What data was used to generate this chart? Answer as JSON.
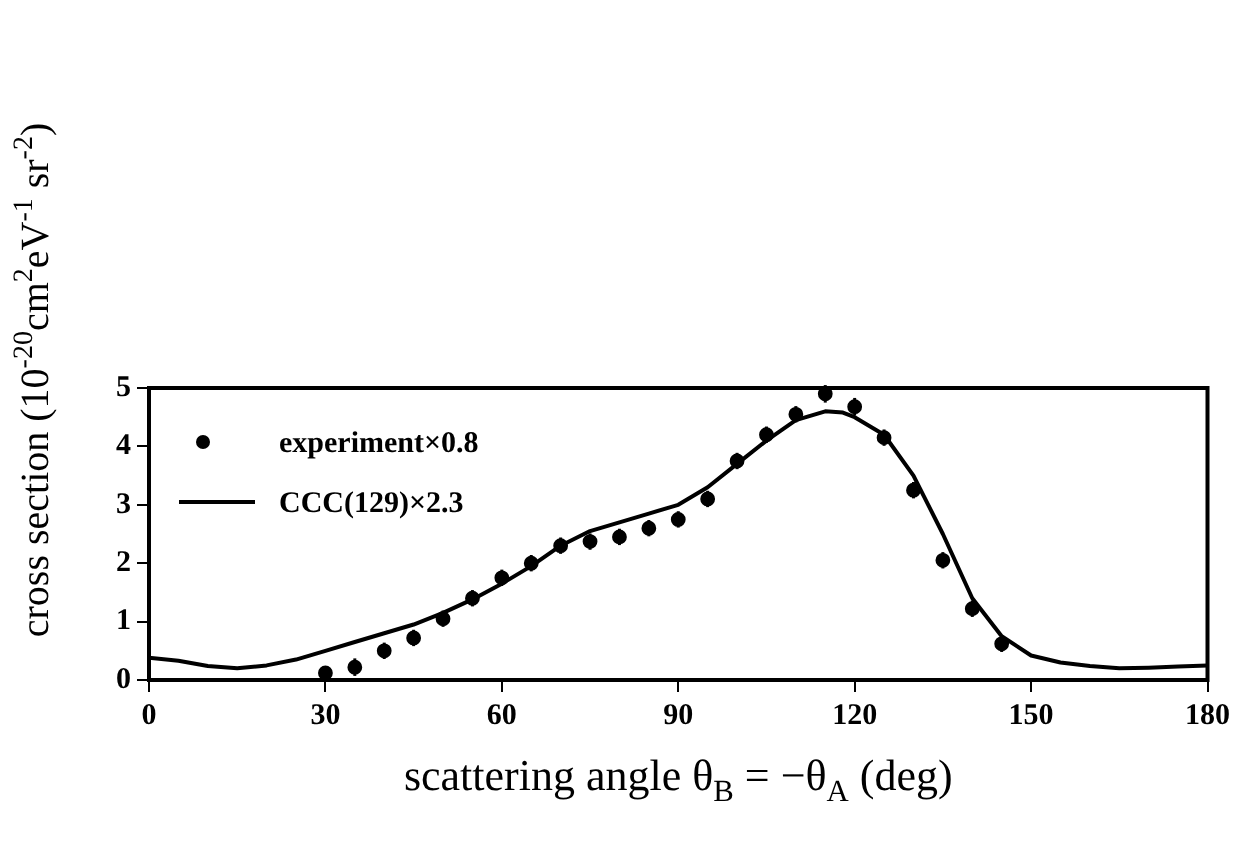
{
  "chart_data": {
    "type": "scatter",
    "xlabel": "scattering angle θ$_{B}$ = −θ$_{A}$ (deg)",
    "ylabel": "cross section (10$^{-20}$cm$^{2}$eV$^{-1}$ sr$^{-2}$)",
    "xlim": [
      0,
      180
    ],
    "xticks": [
      0,
      30,
      60,
      90,
      120,
      150,
      180
    ],
    "ylim": [
      0,
      5
    ],
    "yticks": [
      0,
      1,
      2,
      3,
      4,
      5
    ],
    "grid": false,
    "legend": "top left",
    "series": [
      {
        "name": "experiment×0.8",
        "marker": "circle",
        "color": "#000000",
        "x": [
          30,
          35,
          40,
          45,
          50,
          55,
          60,
          65,
          70,
          75,
          80,
          85,
          90,
          95,
          100,
          105,
          110,
          115,
          120,
          125,
          130,
          135,
          140,
          145
        ],
        "values": [
          0.12,
          0.22,
          0.5,
          0.72,
          1.05,
          1.4,
          1.75,
          2.0,
          2.3,
          2.37,
          2.45,
          2.6,
          2.75,
          3.1,
          3.75,
          4.2,
          4.55,
          4.9,
          4.68,
          4.15,
          3.25,
          2.05,
          1.22,
          0.62
        ],
        "errors": [
          0.11,
          0.15,
          0.14,
          0.14,
          0.14,
          0.14,
          0.14,
          0.14,
          0.14,
          0.14,
          0.14,
          0.14,
          0.14,
          0.14,
          0.14,
          0.14,
          0.14,
          0.15,
          0.15,
          0.14,
          0.14,
          0.14,
          0.14,
          0.14
        ]
      },
      {
        "name": "CCC(129)×2.3",
        "type": "line",
        "marker": "none",
        "line_style": "solid",
        "color": "#000000",
        "x": [
          0,
          5,
          10,
          15,
          20,
          25,
          30,
          35,
          40,
          45,
          50,
          55,
          60,
          65,
          70,
          75,
          80,
          85,
          90,
          95,
          100,
          105,
          110,
          115,
          118,
          120,
          125,
          130,
          135,
          140,
          145,
          150,
          155,
          160,
          165,
          170,
          175,
          180
        ],
        "values": [
          0.38,
          0.33,
          0.24,
          0.2,
          0.25,
          0.35,
          0.5,
          0.65,
          0.8,
          0.95,
          1.15,
          1.38,
          1.65,
          1.95,
          2.3,
          2.55,
          2.7,
          2.85,
          3.0,
          3.3,
          3.7,
          4.1,
          4.45,
          4.6,
          4.58,
          4.5,
          4.2,
          3.5,
          2.5,
          1.4,
          0.75,
          0.42,
          0.3,
          0.24,
          0.2,
          0.21,
          0.23,
          0.25
        ]
      }
    ]
  }
}
